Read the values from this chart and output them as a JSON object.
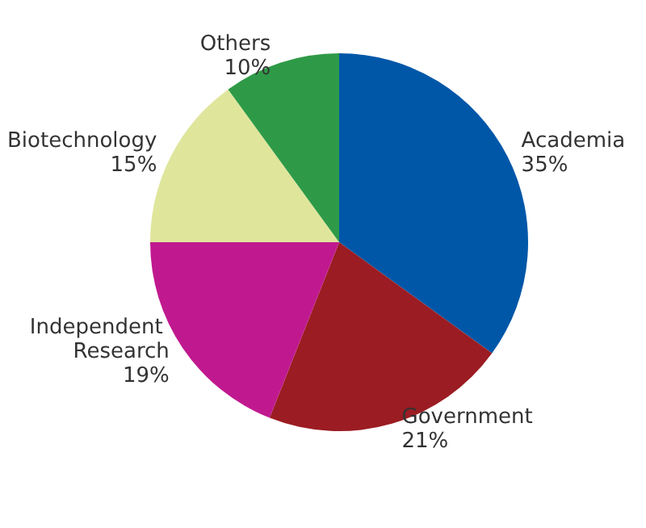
{
  "chart_data": {
    "type": "pie",
    "categories": [
      "Academia",
      "Government",
      "Independent Research",
      "Biotechnology",
      "Others"
    ],
    "values": [
      35,
      21,
      19,
      15,
      10
    ],
    "colors": [
      "#0057a8",
      "#9b1c22",
      "#c0198f",
      "#dfe69c",
      "#2e9a47"
    ],
    "value_labels": [
      "35%",
      "21%",
      "19%",
      "15%",
      "10%"
    ],
    "legend": false
  }
}
